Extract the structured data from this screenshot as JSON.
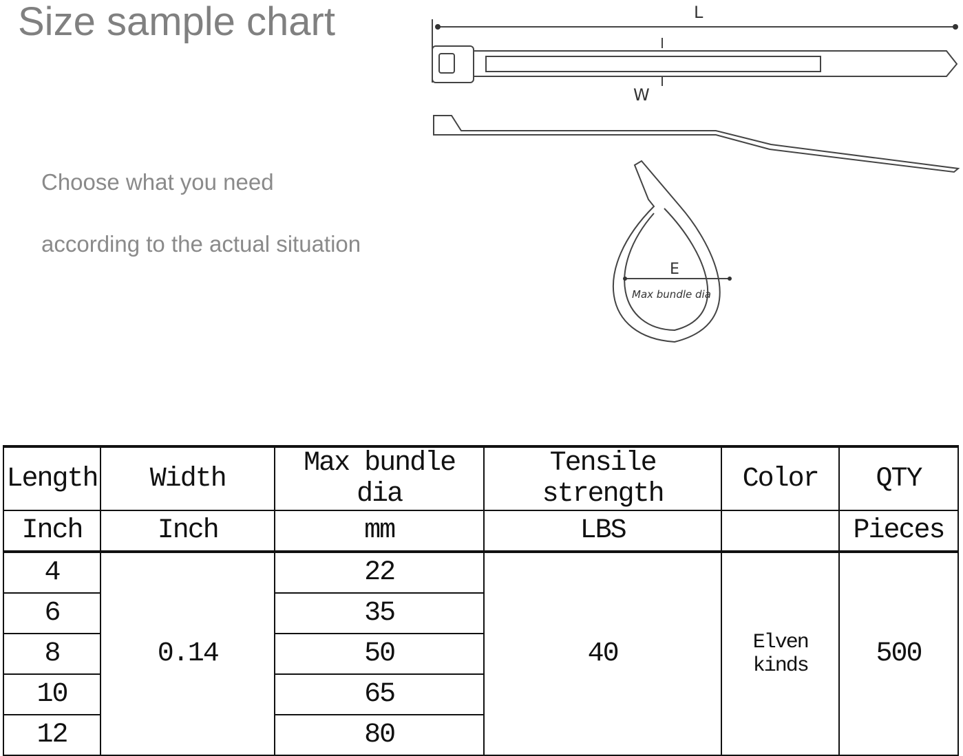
{
  "title": "Size sample chart",
  "subtitle_lines": [
    "Choose what you need",
    "according to the actual situation"
  ],
  "diagram": {
    "length_label": "L",
    "width_label": "W",
    "diameter_label": "E",
    "diameter_caption": "Max bundle dia"
  },
  "table": {
    "headers": [
      "Length",
      "Width",
      "Max bundle dia",
      "Tensile strength",
      "Color",
      "QTY"
    ],
    "units": [
      "Inch",
      "Inch",
      "mm",
      "LBS",
      "",
      "Pieces"
    ],
    "lengths": [
      "4",
      "6",
      "8",
      "10",
      "12"
    ],
    "width": "0.14",
    "max_bundle_dia": [
      "22",
      "35",
      "50",
      "65",
      "80"
    ],
    "tensile_strength": "40",
    "color": "Elven kinds",
    "qty": "500"
  }
}
